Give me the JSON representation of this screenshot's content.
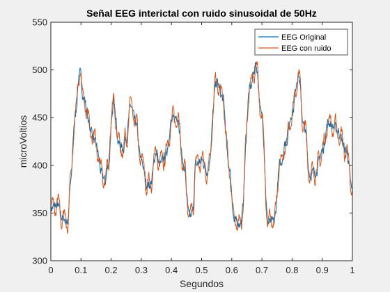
{
  "chart_data": {
    "type": "line",
    "title": "Señal EEG interictal con ruido sinusoidal de 50Hz",
    "xlabel": "Segundos",
    "ylabel": "microVoltios",
    "xlim": [
      0,
      1
    ],
    "ylim": [
      300,
      550
    ],
    "xticks": [
      0,
      0.1,
      0.2,
      0.3,
      0.4,
      0.5,
      0.6,
      0.7,
      0.8,
      0.9,
      1
    ],
    "xtick_labels": [
      "0",
      "0.1",
      "0.2",
      "0.3",
      "0.4",
      "0.5",
      "0.6",
      "0.7",
      "0.8",
      "0.9",
      "1"
    ],
    "yticks": [
      300,
      350,
      400,
      450,
      500,
      550
    ],
    "ytick_labels": [
      "300",
      "350",
      "400",
      "450",
      "500",
      "550"
    ],
    "grid": false,
    "legend_position": "top-right",
    "series": [
      {
        "name": "EEG Original",
        "color": "#0072bd",
        "x": [
          0,
          0.02,
          0.04,
          0.055,
          0.065,
          0.08,
          0.095,
          0.11,
          0.13,
          0.15,
          0.17,
          0.18,
          0.19,
          0.2,
          0.21,
          0.225,
          0.24,
          0.25,
          0.265,
          0.28,
          0.3,
          0.32,
          0.33,
          0.35,
          0.36,
          0.38,
          0.4,
          0.42,
          0.44,
          0.46,
          0.47,
          0.48,
          0.5,
          0.52,
          0.55,
          0.57,
          0.59,
          0.61,
          0.63,
          0.66,
          0.68,
          0.7,
          0.72,
          0.74,
          0.76,
          0.78,
          0.8,
          0.82,
          0.84,
          0.86,
          0.88,
          0.9,
          0.92,
          0.95,
          0.98,
          1
        ],
        "values": [
          355,
          358,
          345,
          340,
          380,
          450,
          497,
          470,
          440,
          420,
          390,
          383,
          400,
          440,
          468,
          422,
          418,
          430,
          462,
          445,
          405,
          380,
          380,
          415,
          400,
          410,
          445,
          452,
          400,
          345,
          350,
          400,
          405,
          395,
          487,
          470,
          400,
          340,
          340,
          480,
          505,
          450,
          340,
          340,
          400,
          425,
          455,
          495,
          440,
          390,
          395,
          415,
          445,
          437,
          415,
          372
        ]
      },
      {
        "name": "EEG con ruido",
        "color": "#d95319",
        "noise_amplitude": 10,
        "noise_frequency_hz": 50
      }
    ]
  }
}
